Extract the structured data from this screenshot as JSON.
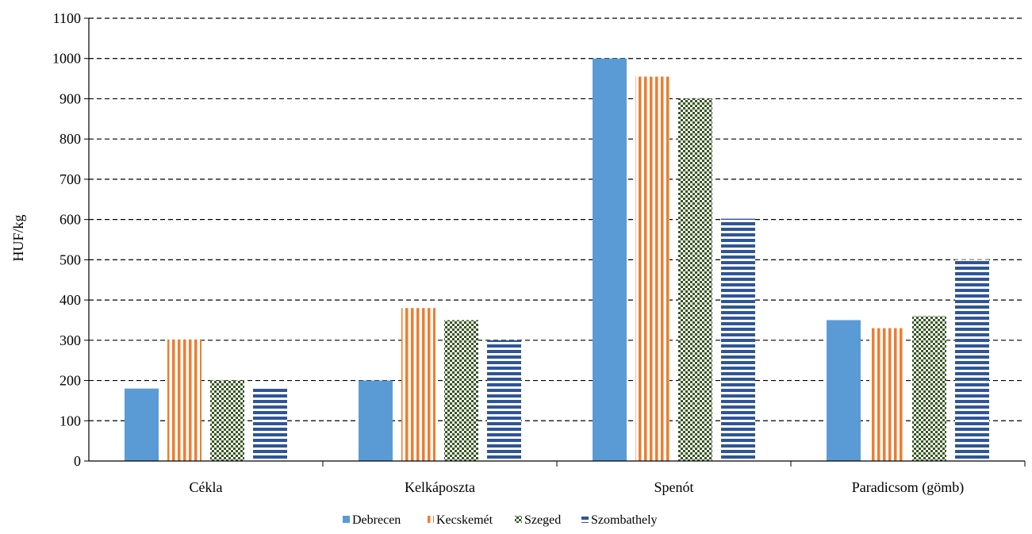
{
  "chart_data": {
    "type": "bar",
    "categories": [
      "Cékla",
      "Kelkáposzta",
      "Spenót",
      "Paradicsom (gömb)"
    ],
    "series": [
      {
        "name": "Debrecen",
        "values": [
          180,
          200,
          1000,
          350
        ],
        "color": "#5B9BD5",
        "pattern": "solid"
      },
      {
        "name": "Kecskemét",
        "values": [
          302,
          380,
          955,
          330
        ],
        "color": "#ED7D31",
        "pattern": "vertical-stripes"
      },
      {
        "name": "Szeged",
        "values": [
          200,
          350,
          900,
          360
        ],
        "color": "#375623",
        "pattern": "checker"
      },
      {
        "name": "Szombathely",
        "values": [
          180,
          300,
          602,
          500
        ],
        "color": "#2F5597",
        "pattern": "horizontal-stripes"
      }
    ],
    "title": "",
    "xlabel": "",
    "ylabel": "HUF/kg",
    "ylim": [
      0,
      1100
    ],
    "yticks": [
      "0",
      "100",
      "200",
      "300",
      "400",
      "500",
      "600",
      "700",
      "800",
      "900",
      "1000",
      "1100"
    ],
    "grid": "dashed horizontal",
    "legend": "bottom-center"
  }
}
